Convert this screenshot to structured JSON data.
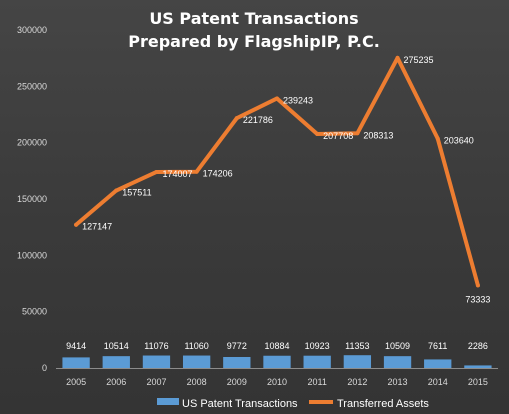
{
  "chart_data": {
    "type": "bar",
    "title": [
      "US Patent Transactions",
      "Prepared by FlagshipIP, P.C."
    ],
    "categories": [
      "2005",
      "2006",
      "2007",
      "2008",
      "2009",
      "2010",
      "2011",
      "2012",
      "2013",
      "2014",
      "2015"
    ],
    "ylim": [
      0,
      300000
    ],
    "yticks": [
      "0",
      "50000",
      "100000",
      "150000",
      "200000",
      "250000",
      "300000"
    ],
    "grid": false,
    "legend_position": "bottom",
    "series": [
      {
        "name": "US Patent Transactions",
        "type": "bar",
        "color": "#5b9bd5",
        "values": [
          9414,
          10514,
          11076,
          11060,
          9772,
          10884,
          10923,
          11353,
          10509,
          7611,
          2286
        ],
        "labels": [
          "9414",
          "10514",
          "11076",
          "11060",
          "9772",
          "10884",
          "10923",
          "11353",
          "10509",
          "7611",
          "2286"
        ]
      },
      {
        "name": "Transferred Assets",
        "type": "line",
        "color": "#ed7d31",
        "values": [
          127147,
          157511,
          174007,
          174206,
          221786,
          239243,
          207708,
          208313,
          275235,
          203640,
          73333
        ],
        "labels": [
          "127147",
          "157511",
          "174007",
          "174206",
          "221786",
          "239243",
          "207708",
          "208313",
          "275235",
          "203640",
          "73333"
        ]
      }
    ]
  }
}
